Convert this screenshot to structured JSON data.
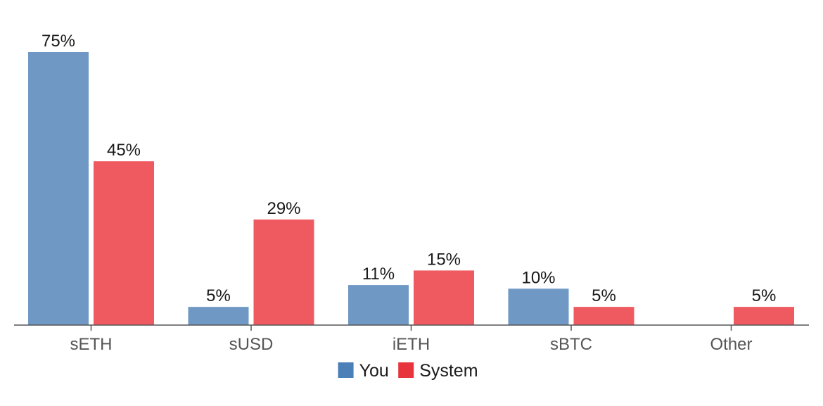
{
  "chart_data": {
    "type": "bar",
    "categories": [
      "sETH",
      "sUSD",
      "iETH",
      "sBTC",
      "Other"
    ],
    "series": [
      {
        "name": "You",
        "values": [
          75,
          5,
          11,
          10,
          null
        ],
        "labels": [
          "75%",
          "5%",
          "11%",
          "10%",
          ""
        ],
        "color": "#6f99c4"
      },
      {
        "name": "System",
        "values": [
          45,
          29,
          15,
          5,
          5
        ],
        "labels": [
          "45%",
          "29%",
          "15%",
          "5%",
          "5%"
        ],
        "color": "#ef5a60"
      }
    ],
    "legend": {
      "position": "bottom-center",
      "swatch_colors": [
        "#4a7fb8",
        "#e8343c"
      ]
    },
    "ylim": [
      0,
      75
    ],
    "grid": false,
    "axis_color": "#555555"
  }
}
